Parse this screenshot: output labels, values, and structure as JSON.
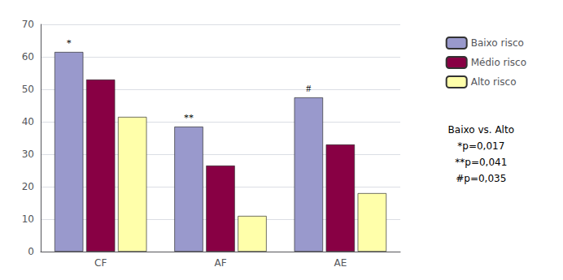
{
  "chart_data": {
    "type": "bar",
    "categories": [
      "CF",
      "AF",
      "AE"
    ],
    "series": [
      {
        "name": "Baixo risco",
        "color": "#9999cc",
        "values": [
          61.5,
          38.5,
          47.5
        ]
      },
      {
        "name": "Médio risco",
        "color": "#880044",
        "values": [
          53.0,
          26.5,
          33.0
        ]
      },
      {
        "name": "Alto risco",
        "color": "#ffffaa",
        "values": [
          41.5,
          11.0,
          18.0
        ]
      }
    ],
    "annotations": [
      {
        "series": "Baixo risco",
        "category": "CF",
        "text": "*"
      },
      {
        "series": "Baixo risco",
        "category": "AF",
        "text": "**"
      },
      {
        "series": "Baixo risco",
        "category": "AE",
        "text": "#"
      }
    ],
    "footnote": [
      "Baixo vs. Alto",
      "*p=0,017",
      "**p=0,041",
      "#p=0,035"
    ],
    "ylim": [
      0,
      70
    ],
    "yticks": [
      0,
      10,
      20,
      30,
      40,
      50,
      60,
      70
    ],
    "grid": true,
    "legend": "right"
  }
}
